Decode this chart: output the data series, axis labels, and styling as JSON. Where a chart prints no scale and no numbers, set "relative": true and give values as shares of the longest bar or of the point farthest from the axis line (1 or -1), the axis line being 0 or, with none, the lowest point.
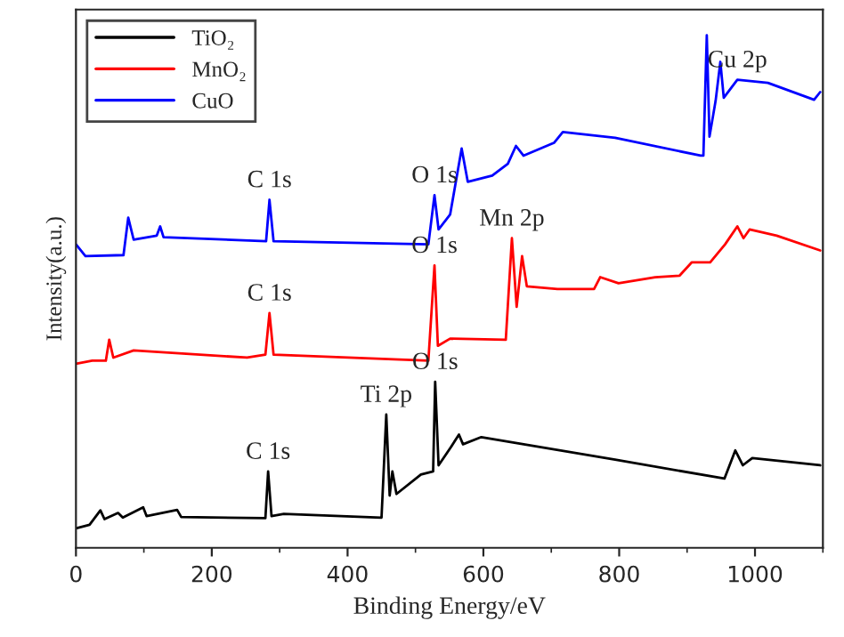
{
  "chart_data": {
    "type": "line",
    "relative": true,
    "xlabel": "Binding Energy/eV",
    "ylabel": "Intensity(a.u.)",
    "xlim": [
      0,
      1100
    ],
    "xticks": [
      0,
      200,
      400,
      600,
      800,
      1000
    ],
    "legend": "top left",
    "grid": false,
    "marker": "none",
    "line_style": "solid",
    "tick_labels": "x",
    "series": [
      {
        "name": "TiO₂",
        "color": "#000000",
        "x": [
          0,
          20,
          36,
          42,
          62,
          69,
          99,
          104,
          149,
          155,
          279,
          283,
          288,
          306,
          450,
          457,
          462,
          466,
          472,
          508,
          526,
          529,
          534,
          552,
          564,
          570,
          597,
          794,
          955,
          971,
          982,
          996,
          1096
        ],
        "values": [
          0.038,
          0.045,
          0.073,
          0.056,
          0.068,
          0.059,
          0.079,
          0.062,
          0.074,
          0.06,
          0.058,
          0.149,
          0.062,
          0.066,
          0.059,
          0.26,
          0.102,
          0.149,
          0.105,
          0.143,
          0.149,
          0.324,
          0.161,
          0.196,
          0.221,
          0.202,
          0.216,
          0.172,
          0.135,
          0.19,
          0.161,
          0.175,
          0.161
        ]
      },
      {
        "name": "MnO₂",
        "color": "#ff0000",
        "x": [
          0,
          24,
          44,
          49,
          55,
          85,
          252,
          279,
          285,
          291,
          519,
          528,
          533,
          551,
          633,
          642,
          649,
          657,
          664,
          709,
          763,
          772,
          799,
          853,
          889,
          907,
          934,
          956,
          974,
          983,
          992,
          1032,
          1096
        ],
        "values": [
          0.359,
          0.365,
          0.365,
          0.406,
          0.371,
          0.385,
          0.371,
          0.377,
          0.458,
          0.377,
          0.365,
          0.551,
          0.394,
          0.408,
          0.406,
          0.604,
          0.47,
          0.569,
          0.51,
          0.505,
          0.505,
          0.528,
          0.516,
          0.528,
          0.531,
          0.557,
          0.557,
          0.592,
          0.627,
          0.604,
          0.621,
          0.609,
          0.58
        ]
      },
      {
        "name": "CuO",
        "color": "#0000ff",
        "x": [
          0,
          14,
          70,
          77,
          85,
          119,
          124,
          129,
          280,
          285,
          291,
          519,
          528,
          534,
          551,
          568,
          577,
          613,
          636,
          648,
          659,
          704,
          717,
          794,
          920,
          924,
          929,
          933,
          942,
          949,
          954,
          974,
          1019,
          1087,
          1096
        ],
        "values": [
          0.592,
          0.569,
          0.571,
          0.644,
          0.601,
          0.609,
          0.627,
          0.606,
          0.598,
          0.679,
          0.598,
          0.592,
          0.688,
          0.621,
          0.65,
          0.779,
          0.714,
          0.726,
          0.749,
          0.784,
          0.765,
          0.79,
          0.811,
          0.8,
          0.765,
          0.765,
          1.0,
          0.802,
          0.872,
          0.948,
          0.878,
          0.913,
          0.907,
          0.874,
          0.889
        ]
      }
    ],
    "annotations": [
      {
        "text": "C 1s",
        "x": 283,
        "y": 0.149
      },
      {
        "text": "Ti 2p",
        "x": 457,
        "y": 0.26
      },
      {
        "text": "O 1s",
        "x": 529,
        "y": 0.324
      },
      {
        "text": "C 1s",
        "x": 285,
        "y": 0.458
      },
      {
        "text": "O 1s",
        "x": 528,
        "y": 0.551
      },
      {
        "text": "Mn 2p",
        "x": 642,
        "y": 0.604
      },
      {
        "text": "C 1s",
        "x": 285,
        "y": 0.679
      },
      {
        "text": "O 1s",
        "x": 528,
        "y": 0.688
      },
      {
        "text": "Cu 2p",
        "x": 974,
        "y": 0.913
      }
    ]
  }
}
